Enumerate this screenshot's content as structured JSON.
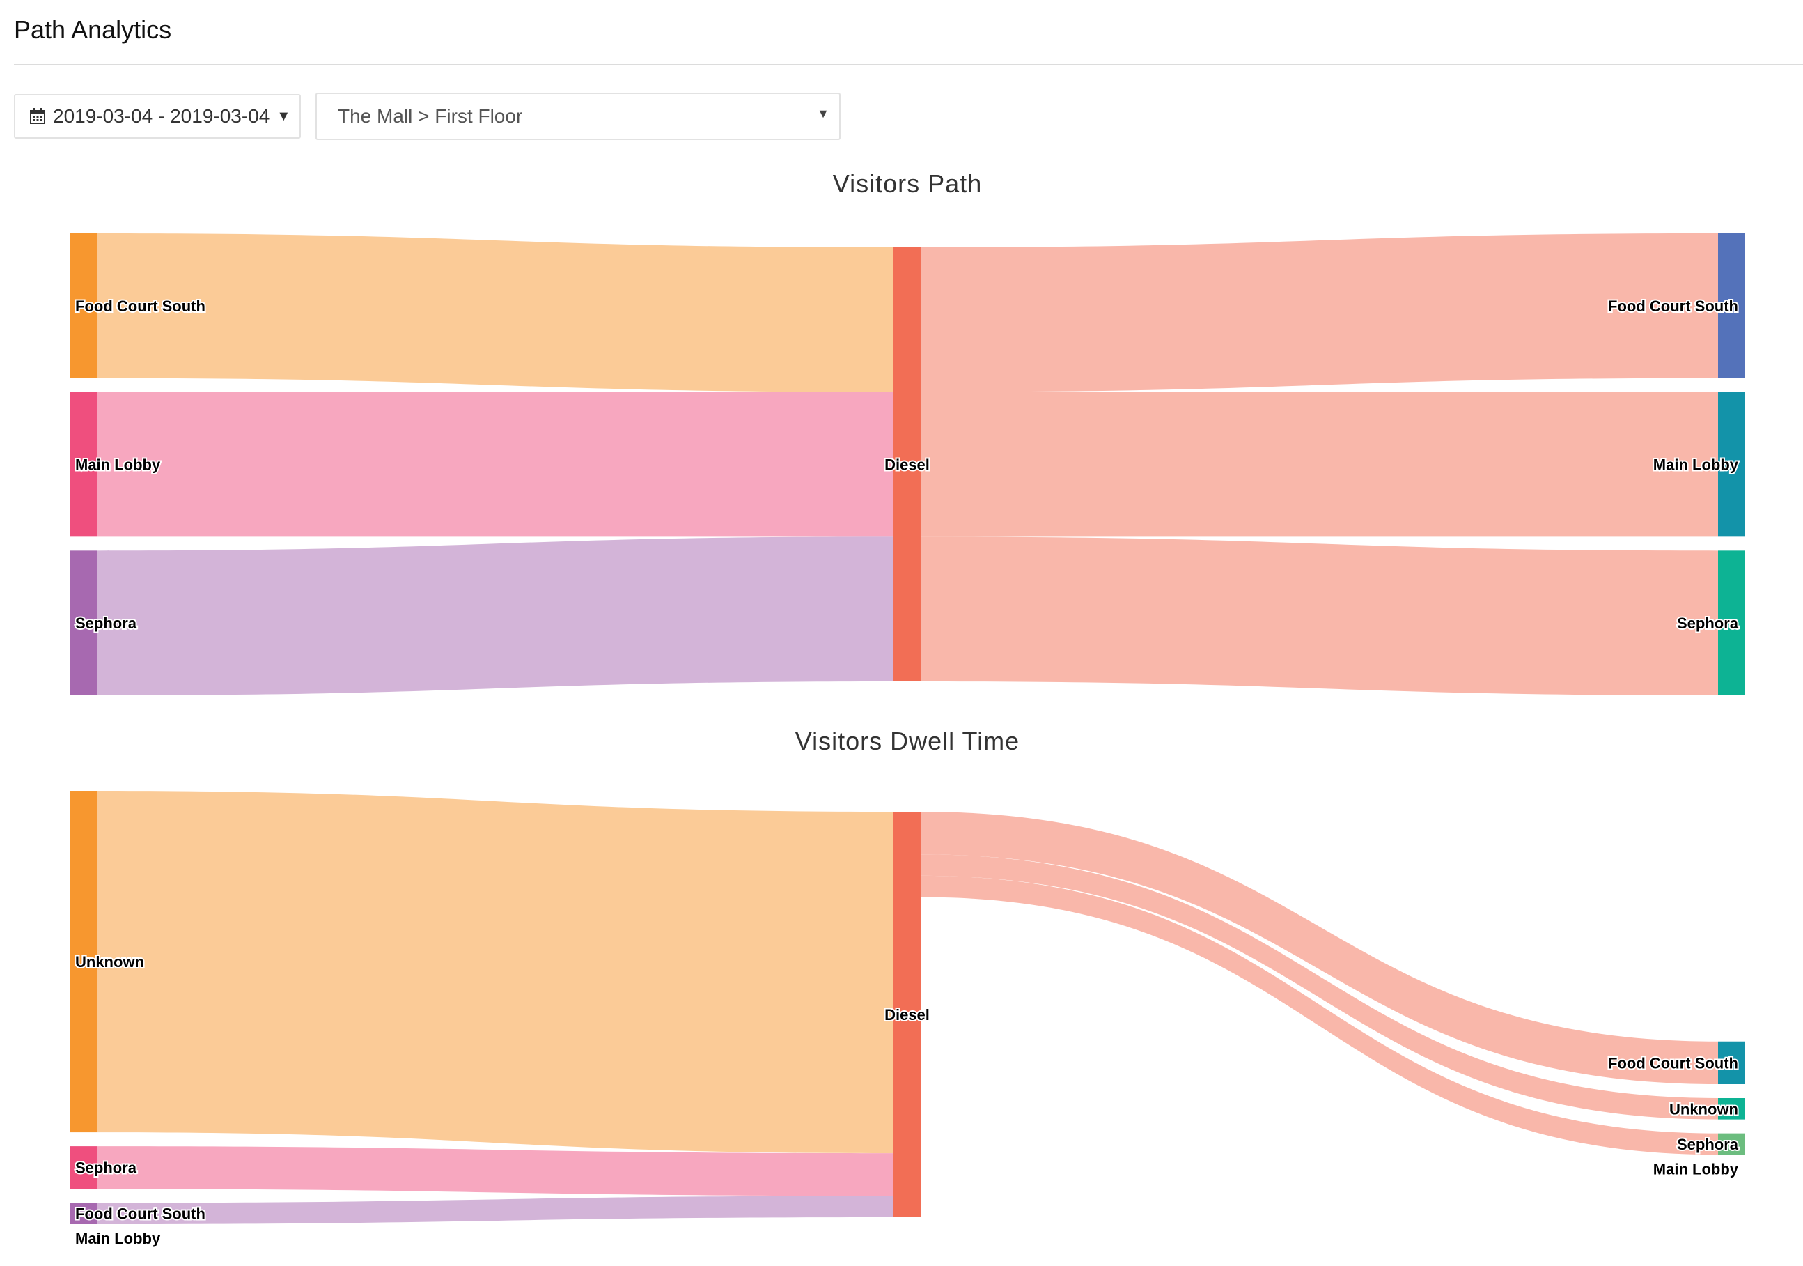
{
  "header": {
    "title": "Path Analytics"
  },
  "toolbar": {
    "date_range": "2019-03-04 - 2019-03-04",
    "location": "The Mall > First Floor"
  },
  "chart_data": [
    {
      "type": "sankey",
      "title": "Visitors Path",
      "nodes": [
        {
          "id": "l0",
          "name": "Food Court South",
          "column": 0,
          "color": "#f7972f"
        },
        {
          "id": "l1",
          "name": "Main Lobby",
          "column": 0,
          "color": "#ef4f7e"
        },
        {
          "id": "l2",
          "name": "Sephora",
          "column": 0,
          "color": "#a769b0"
        },
        {
          "id": "m0",
          "name": "Diesel",
          "column": 1,
          "color": "#f26e55"
        },
        {
          "id": "r0",
          "name": "Food Court South",
          "column": 2,
          "color": "#5472ba"
        },
        {
          "id": "r1",
          "name": "Main Lobby",
          "column": 2,
          "color": "#1393a9"
        },
        {
          "id": "r2",
          "name": "Sephora",
          "column": 2,
          "color": "#0db394"
        }
      ],
      "links": [
        {
          "source": "l0",
          "target": "m0",
          "value": 1
        },
        {
          "source": "l1",
          "target": "m0",
          "value": 1
        },
        {
          "source": "l2",
          "target": "m0",
          "value": 1
        },
        {
          "source": "m0",
          "target": "r0",
          "value": 1
        },
        {
          "source": "m0",
          "target": "r1",
          "value": 1
        },
        {
          "source": "m0",
          "target": "r2",
          "value": 1
        }
      ]
    },
    {
      "type": "sankey",
      "title": "Visitors Dwell Time",
      "nodes": [
        {
          "id": "l0",
          "name": "Unknown",
          "column": 0,
          "color": "#f7972f"
        },
        {
          "id": "l1",
          "name": "Sephora",
          "column": 0,
          "color": "#ef4f7e"
        },
        {
          "id": "l2",
          "name": "Food Court South",
          "column": 0,
          "color": "#a769b0"
        },
        {
          "id": "l3",
          "name": "Main Lobby",
          "column": 0,
          "color": "#a769b0"
        },
        {
          "id": "m0",
          "name": "Diesel",
          "column": 1,
          "color": "#f26e55"
        },
        {
          "id": "r0",
          "name": "Food Court South",
          "column": 2,
          "color": "#1393a9"
        },
        {
          "id": "r1",
          "name": "Unknown",
          "column": 2,
          "color": "#0db394"
        },
        {
          "id": "r2",
          "name": "Sephora",
          "column": 2,
          "color": "#6cbd7f"
        },
        {
          "id": "r3",
          "name": "Main Lobby",
          "column": 2,
          "color": "#6cbd7f"
        }
      ],
      "links": [
        {
          "source": "l0",
          "target": "m0",
          "value": 16
        },
        {
          "source": "l1",
          "target": "m0",
          "value": 2
        },
        {
          "source": "l2",
          "target": "m0",
          "value": 1
        },
        {
          "source": "l3",
          "target": "m0",
          "value": 0
        },
        {
          "source": "m0",
          "target": "r0",
          "value": 2
        },
        {
          "source": "m0",
          "target": "r1",
          "value": 1
        },
        {
          "source": "m0",
          "target": "r2",
          "value": 1
        },
        {
          "source": "m0",
          "target": "r3",
          "value": 0
        }
      ]
    }
  ]
}
